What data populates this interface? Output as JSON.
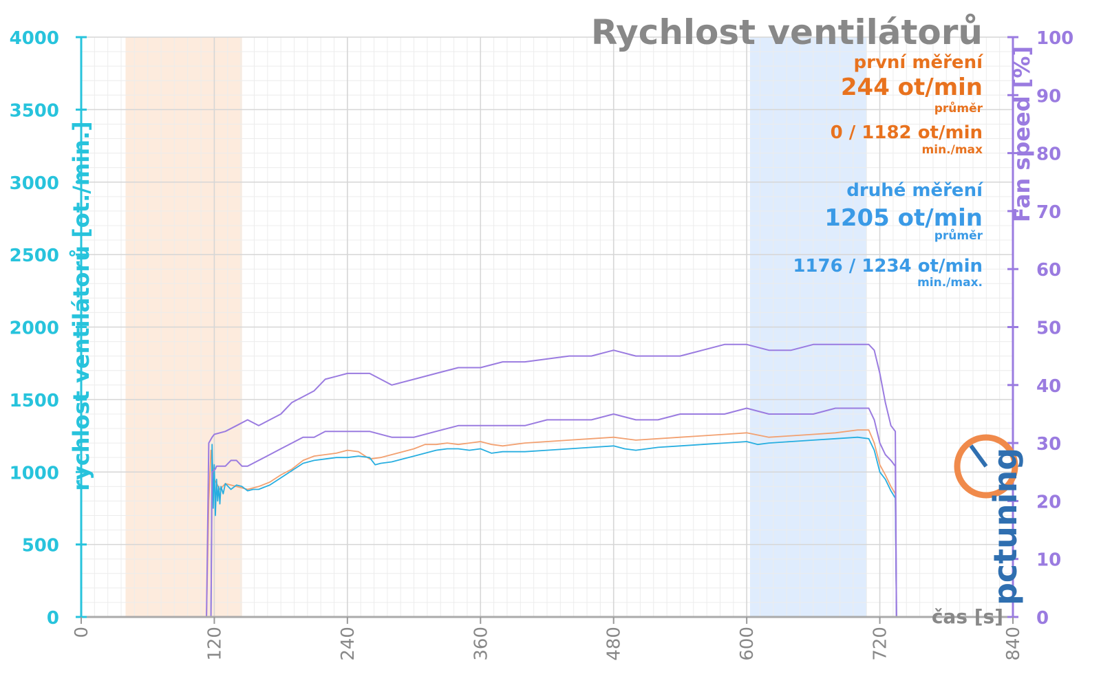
{
  "title": "Rychlost ventilátorů",
  "stats": {
    "first": {
      "label": "první měření",
      "avg": "244 ot/min",
      "avg_label": "průměr",
      "minmax": "0 / 1182 ot/min",
      "minmax_label": "min./max"
    },
    "second": {
      "label": "druhé měření",
      "avg": "1205 ot/min",
      "avg_label": "průměr",
      "minmax": "1176 / 1234 ot/min",
      "minmax_label": "min./max."
    }
  },
  "logo_text": "pctuning",
  "colors": {
    "first": "#f2a070",
    "second": "#27aee0",
    "percent": "#9a7be0",
    "left_axis": "#27c3dc",
    "right_axis": "#9a7be0",
    "band_first": "#fde9d9",
    "band_second": "#dceafd"
  },
  "chart_data": {
    "type": "line",
    "x_label": "čas [s]",
    "y_left_label": "rychlost ventilátorů [ot./min.]",
    "y_right_label": "Fan speed [%]",
    "xlim": [
      0,
      840
    ],
    "ylim_left": [
      0,
      4000
    ],
    "ylim_right": [
      0,
      100
    ],
    "x_ticks": [
      0,
      120,
      240,
      360,
      480,
      600,
      720,
      840
    ],
    "y_left_ticks": [
      0,
      500,
      1000,
      1500,
      2000,
      2500,
      3000,
      3500,
      4000
    ],
    "y_right_ticks": [
      0,
      10,
      20,
      30,
      40,
      50,
      60,
      70,
      80,
      90,
      100
    ],
    "grid": true,
    "bands": [
      {
        "series": "první měření",
        "x": [
          40,
          145
        ]
      },
      {
        "series": "druhé měření",
        "x": [
          603,
          708
        ]
      }
    ],
    "series": [
      {
        "name": "první měření",
        "axis": "left",
        "style": "rpm",
        "x": [
          0,
          113,
          115,
          117,
          120,
          125,
          130,
          140,
          150,
          160,
          170,
          180,
          190,
          200,
          210,
          220,
          230,
          240,
          250,
          260,
          270,
          280,
          290,
          300,
          310,
          320,
          330,
          340,
          350,
          360,
          370,
          380,
          400,
          420,
          440,
          460,
          480,
          500,
          520,
          540,
          560,
          580,
          600,
          620,
          640,
          660,
          680,
          700,
          710,
          715,
          720,
          725,
          730,
          734,
          735,
          740,
          760
        ],
        "y": [
          0,
          0,
          800,
          1150,
          950,
          880,
          920,
          900,
          880,
          900,
          930,
          980,
          1020,
          1080,
          1110,
          1120,
          1130,
          1150,
          1140,
          1090,
          1100,
          1120,
          1140,
          1160,
          1190,
          1190,
          1200,
          1190,
          1200,
          1210,
          1190,
          1180,
          1200,
          1210,
          1220,
          1230,
          1240,
          1220,
          1230,
          1240,
          1250,
          1260,
          1270,
          1240,
          1250,
          1260,
          1270,
          1290,
          1290,
          1200,
          1050,
          980,
          900,
          850,
          0,
          0,
          0
        ]
      },
      {
        "name": "druhé měření",
        "axis": "left",
        "style": "rpm",
        "x": [
          0,
          117,
          118,
          119,
          120,
          121,
          122,
          123,
          124,
          125,
          126,
          128,
          130,
          135,
          140,
          145,
          150,
          155,
          160,
          170,
          180,
          190,
          200,
          210,
          220,
          230,
          240,
          250,
          260,
          265,
          270,
          280,
          290,
          300,
          310,
          320,
          330,
          340,
          350,
          360,
          370,
          380,
          400,
          420,
          440,
          460,
          480,
          490,
          500,
          520,
          540,
          560,
          580,
          600,
          610,
          620,
          640,
          660,
          680,
          700,
          710,
          715,
          720,
          725,
          730,
          734,
          735,
          740,
          760
        ],
        "y": [
          0,
          0,
          1190,
          750,
          1050,
          700,
          950,
          800,
          900,
          780,
          900,
          850,
          920,
          880,
          910,
          900,
          870,
          880,
          880,
          910,
          960,
          1010,
          1060,
          1080,
          1090,
          1100,
          1100,
          1110,
          1100,
          1050,
          1060,
          1070,
          1090,
          1110,
          1130,
          1150,
          1160,
          1160,
          1150,
          1160,
          1130,
          1140,
          1140,
          1150,
          1160,
          1170,
          1180,
          1160,
          1150,
          1170,
          1180,
          1190,
          1200,
          1210,
          1190,
          1200,
          1210,
          1220,
          1230,
          1240,
          1230,
          1150,
          1000,
          950,
          870,
          820,
          0,
          0,
          0
        ]
      },
      {
        "name": "první měření %",
        "axis": "right",
        "style": "percent",
        "x": [
          0,
          113,
          115,
          118,
          120,
          130,
          140,
          150,
          160,
          170,
          180,
          185,
          190,
          200,
          210,
          220,
          230,
          240,
          260,
          280,
          300,
          320,
          340,
          360,
          380,
          400,
          420,
          440,
          460,
          480,
          500,
          520,
          540,
          560,
          580,
          600,
          620,
          640,
          660,
          680,
          700,
          710,
          715,
          720,
          725,
          730,
          734,
          735,
          760
        ],
        "y": [
          0,
          0,
          30,
          31,
          31.5,
          32,
          33,
          34,
          33,
          34,
          35,
          36,
          37,
          38,
          39,
          41,
          41.5,
          42,
          42,
          40,
          41,
          42,
          43,
          43,
          44,
          44,
          44.5,
          45,
          45,
          46,
          45,
          45,
          45,
          46,
          47,
          47,
          46,
          46,
          47,
          47,
          47,
          47,
          46,
          42,
          37,
          33,
          32,
          0,
          0
        ]
      },
      {
        "name": "druhé měření %",
        "axis": "right",
        "style": "percent",
        "x": [
          0,
          117,
          118,
          121,
          122,
          125,
          130,
          135,
          140,
          145,
          150,
          160,
          170,
          180,
          190,
          200,
          210,
          220,
          230,
          240,
          260,
          280,
          300,
          320,
          340,
          360,
          380,
          400,
          420,
          440,
          460,
          480,
          500,
          520,
          540,
          560,
          580,
          600,
          620,
          640,
          660,
          680,
          700,
          710,
          715,
          720,
          725,
          730,
          734,
          735,
          760
        ],
        "y": [
          0,
          0,
          25,
          25.5,
          26,
          26,
          26,
          27,
          27,
          26,
          26,
          27,
          28,
          29,
          30,
          31,
          31,
          32,
          32,
          32,
          32,
          31,
          31,
          32,
          33,
          33,
          33,
          33,
          34,
          34,
          34,
          35,
          34,
          34,
          35,
          35,
          35,
          36,
          35,
          35,
          35,
          36,
          36,
          36,
          34,
          30,
          28,
          27,
          26,
          0,
          0
        ]
      }
    ]
  }
}
